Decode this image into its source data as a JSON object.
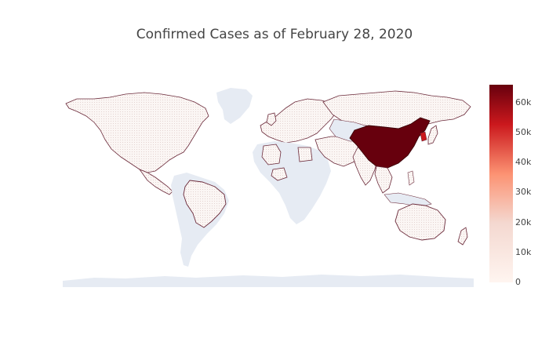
{
  "title": "Confirmed Cases as of February 28, 2020",
  "colors": {
    "land_no_data": "#e6ebf3",
    "low": "#fff5f0",
    "mid": "#fc9272",
    "high": "#cb181d",
    "max": "#67000d",
    "border": "#6b2a3a"
  },
  "chart_data": {
    "type": "choropleth",
    "title": "Confirmed Cases as of February 28, 2020",
    "colorscale": "Reds",
    "zrange": [
      0,
      66000
    ],
    "colorbar_ticks": [
      {
        "value": 0,
        "label": "0"
      },
      {
        "value": 10000,
        "label": "10k"
      },
      {
        "value": 20000,
        "label": "20k"
      },
      {
        "value": 30000,
        "label": "30k"
      },
      {
        "value": 40000,
        "label": "40k"
      },
      {
        "value": 50000,
        "label": "50k"
      },
      {
        "value": 60000,
        "label": "60k"
      }
    ],
    "highlighted_regions": [
      {
        "region": "China",
        "value": 66000
      }
    ]
  }
}
